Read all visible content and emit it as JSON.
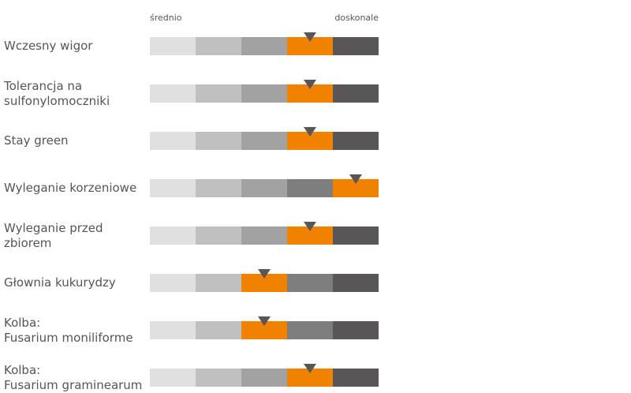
{
  "chart_data": {
    "type": "rating-scale",
    "scale": {
      "min_label": "średnio",
      "max_label": "doskonale",
      "levels": 5
    },
    "colors": {
      "segments": [
        "#e0e0e0",
        "#c0c0c0",
        "#a2a2a2",
        "#7e7e7e",
        "#585656"
      ],
      "highlight": "#f08200",
      "marker": "#585656"
    },
    "rows": [
      {
        "label": "Wczesny wigor",
        "value": 4
      },
      {
        "label": "Tolerancja na\nsulfonylomoczniki",
        "value": 4
      },
      {
        "label": "Stay green",
        "value": 4
      },
      {
        "label": "Wyleganie korzeniowe",
        "value": 5
      },
      {
        "label": "Wyleganie przed\nzbiorem",
        "value": 4
      },
      {
        "label": "Głownia kukurydzy",
        "value": 3
      },
      {
        "label": "Kolba:\nFusarium moniliforme",
        "value": 3
      },
      {
        "label": "Kolba:\nFusarium graminearum",
        "value": 4
      }
    ]
  }
}
